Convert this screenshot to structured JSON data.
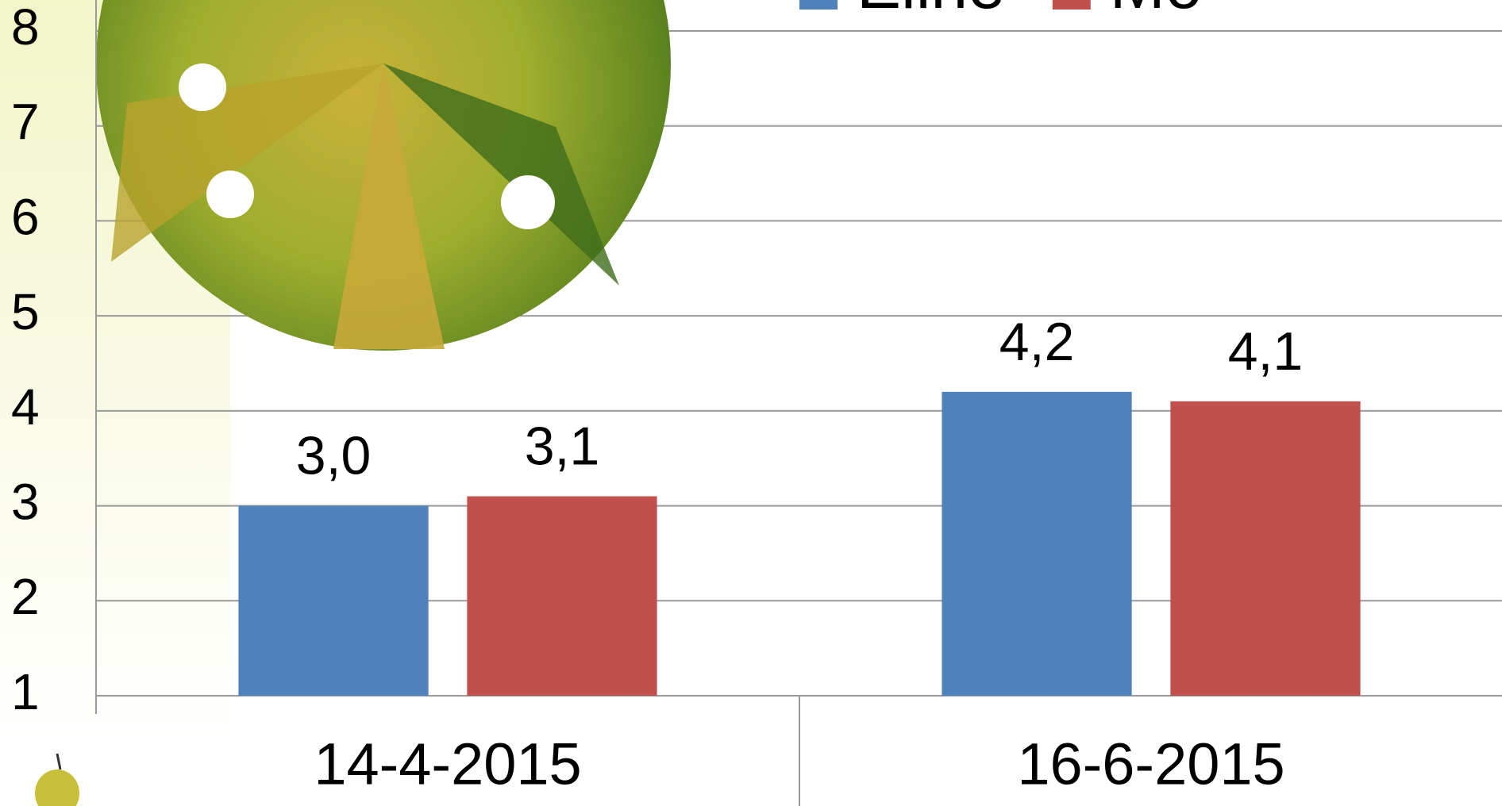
{
  "chart_data": {
    "type": "bar",
    "categories": [
      "14-4-2015",
      "16-6-2015"
    ],
    "series": [
      {
        "name": "Eline",
        "color": "#4f81bd",
        "values": [
          3.0,
          4.2
        ],
        "value_labels": [
          "3,0",
          "4,2"
        ]
      },
      {
        "name": "Mo",
        "color": "#c0504d",
        "values": [
          3.1,
          4.1
        ],
        "value_labels": [
          "3,1",
          "4,1"
        ]
      }
    ],
    "ylim": [
      1,
      8
    ],
    "yticks": [
      1,
      2,
      3,
      4,
      5,
      6,
      7,
      8
    ],
    "grid": true
  }
}
